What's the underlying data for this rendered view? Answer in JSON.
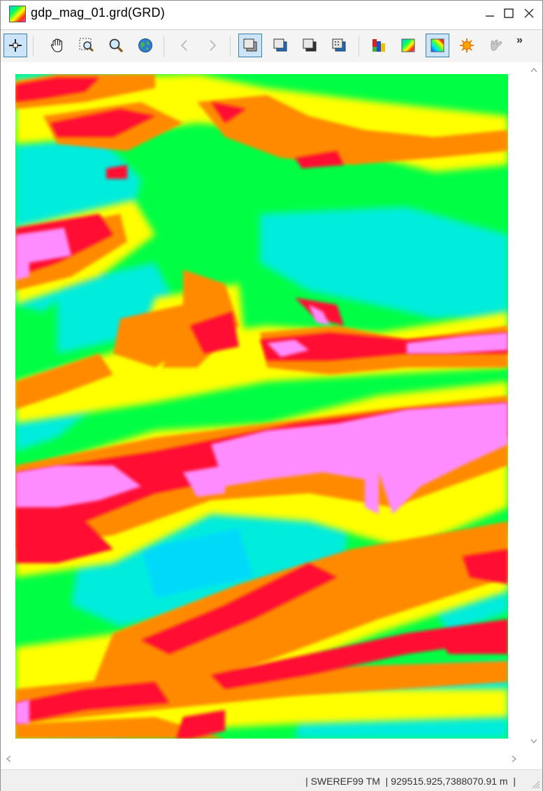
{
  "window": {
    "title": "gdp_mag_01.grd(GRD)",
    "icon": "grid-colormap-icon"
  },
  "toolbar": {
    "buttons": [
      {
        "name": "select-tool",
        "icon": "crosshair-select-icon",
        "active": true
      },
      {
        "name": "pan-tool",
        "icon": "hand-icon",
        "active": false
      },
      {
        "name": "zoom-window-tool",
        "icon": "zoom-window-icon",
        "active": false
      },
      {
        "name": "zoom-tool",
        "icon": "magnifier-icon",
        "active": false
      },
      {
        "name": "full-extent-tool",
        "icon": "globe-icon",
        "active": false
      },
      {
        "name": "back-tool",
        "icon": "chevron-left-icon",
        "active": false,
        "disabled": true
      },
      {
        "name": "forward-tool",
        "icon": "chevron-right-icon",
        "active": false,
        "disabled": true
      },
      {
        "name": "view-mode-1",
        "icon": "window-layout-1-icon",
        "active": true
      },
      {
        "name": "view-mode-2",
        "icon": "window-layout-2-icon",
        "active": false
      },
      {
        "name": "view-mode-3",
        "icon": "window-layout-3-icon",
        "active": false
      },
      {
        "name": "view-mode-4",
        "icon": "window-layout-grid-icon",
        "active": false
      },
      {
        "name": "color-bars",
        "icon": "color-bars-icon",
        "active": false
      },
      {
        "name": "color-gradient",
        "icon": "color-gradient-icon",
        "active": false
      },
      {
        "name": "color-shaded",
        "icon": "color-shaded-icon",
        "active": true
      },
      {
        "name": "sun-shading",
        "icon": "sun-icon",
        "active": false
      },
      {
        "name": "hand-shading",
        "icon": "hand-light-icon",
        "active": false,
        "disabled": true
      }
    ],
    "overflow": "»"
  },
  "map": {
    "colormap": [
      "#00e8ff",
      "#00ff44",
      "#ffff00",
      "#ff7a00",
      "#ff0028",
      "#ff88ff"
    ]
  },
  "statusbar": {
    "text": "| SWEREF99 TM  | 929515.925,7388070.91 m  |"
  }
}
